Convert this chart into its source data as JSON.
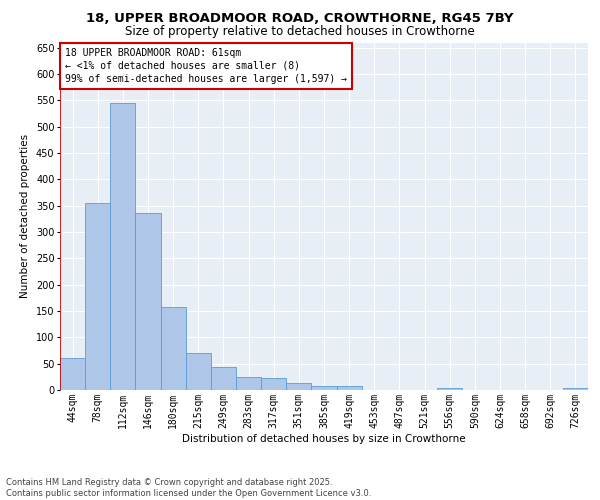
{
  "title": "18, UPPER BROADMOOR ROAD, CROWTHORNE, RG45 7BY",
  "subtitle": "Size of property relative to detached houses in Crowthorne",
  "xlabel": "Distribution of detached houses by size in Crowthorne",
  "ylabel": "Number of detached properties",
  "bar_labels": [
    "44sqm",
    "78sqm",
    "112sqm",
    "146sqm",
    "180sqm",
    "215sqm",
    "249sqm",
    "283sqm",
    "317sqm",
    "351sqm",
    "385sqm",
    "419sqm",
    "453sqm",
    "487sqm",
    "521sqm",
    "556sqm",
    "590sqm",
    "624sqm",
    "658sqm",
    "692sqm",
    "726sqm"
  ],
  "bar_values": [
    60,
    355,
    545,
    337,
    157,
    70,
    43,
    25,
    22,
    14,
    7,
    8,
    0,
    0,
    0,
    4,
    0,
    0,
    0,
    0,
    3
  ],
  "bar_color": "#aec6e8",
  "bar_edge_color": "#5b9bd5",
  "subject_line_color": "#cc0000",
  "ylim": [
    0,
    660
  ],
  "yticks": [
    0,
    50,
    100,
    150,
    200,
    250,
    300,
    350,
    400,
    450,
    500,
    550,
    600,
    650
  ],
  "annotation_title": "18 UPPER BROADMOOR ROAD: 61sqm",
  "annotation_line1": "← <1% of detached houses are smaller (8)",
  "annotation_line2": "99% of semi-detached houses are larger (1,597) →",
  "annotation_box_color": "#cc0000",
  "background_color": "#e8eef5",
  "footer_line1": "Contains HM Land Registry data © Crown copyright and database right 2025.",
  "footer_line2": "Contains public sector information licensed under the Open Government Licence v3.0.",
  "title_fontsize": 9.5,
  "subtitle_fontsize": 8.5,
  "axis_label_fontsize": 7.5,
  "tick_fontsize": 7,
  "annotation_fontsize": 7,
  "footer_fontsize": 6
}
